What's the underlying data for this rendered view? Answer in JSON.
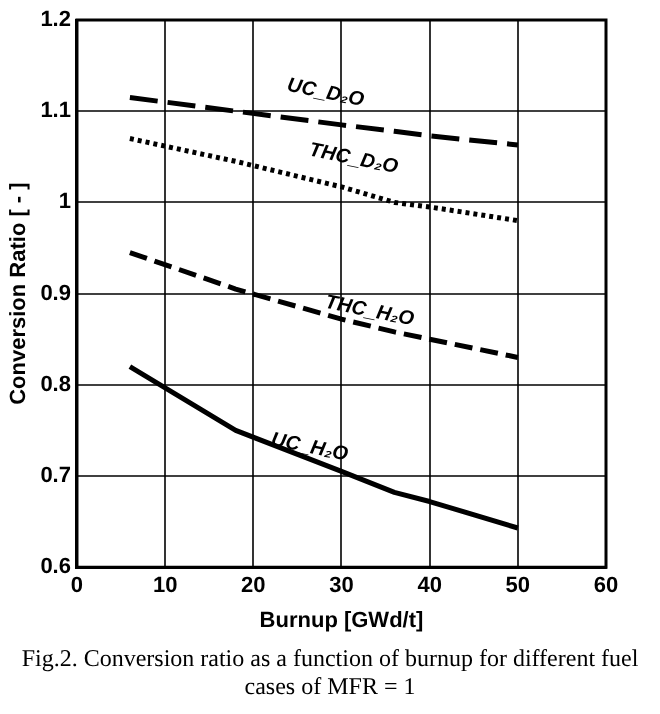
{
  "chart_data": {
    "type": "line",
    "xlabel": "Burnup [GWd/t]",
    "ylabel": "Conversion Ratio [ - ]",
    "x": [
      6,
      18,
      30,
      36,
      40,
      50
    ],
    "series": [
      {
        "name": "UC_D₂O",
        "color": "#000000",
        "line_style": "dashed",
        "values": [
          1.115,
          1.1,
          1.085,
          1.078,
          1.073,
          1.063
        ]
      },
      {
        "name": "THC_D₂O",
        "color": "#000000",
        "line_style": "dotted",
        "values": [
          1.07,
          1.045,
          1.017,
          1.0,
          0.995,
          0.98
        ]
      },
      {
        "name": "THC_H₂O",
        "color": "#000000",
        "line_style": "dashed",
        "values": [
          0.945,
          0.905,
          0.872,
          0.858,
          0.85,
          0.83
        ]
      },
      {
        "name": "UC_H₂O",
        "color": "#000000",
        "line_style": "solid",
        "values": [
          0.82,
          0.75,
          0.705,
          0.682,
          0.672,
          0.643
        ]
      }
    ],
    "xlim": [
      0,
      60
    ],
    "xticks": [
      0,
      10,
      20,
      30,
      40,
      50,
      60
    ],
    "ylim": [
      0.6,
      1.2
    ],
    "yticks": [
      0.6,
      0.7,
      0.8,
      0.9,
      1,
      1.1,
      1.2
    ],
    "grid": true,
    "legend": false,
    "marker": "none",
    "annotations": [
      "Fig.2. Conversion ratio as a function of burnup for different fuel cases of MFR = 1"
    ]
  }
}
